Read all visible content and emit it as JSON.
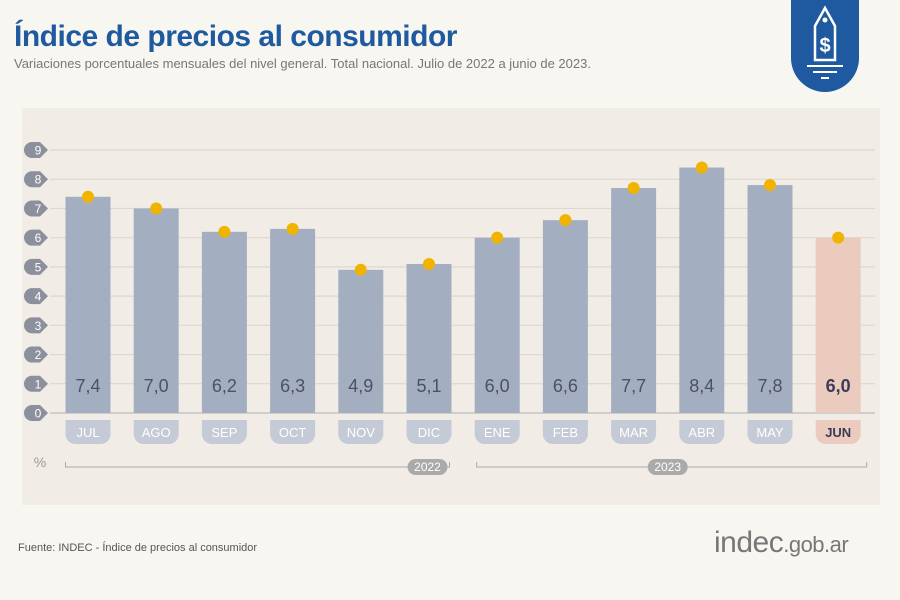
{
  "header": {
    "title": "Índice de precios al consumidor",
    "subtitle": "Variaciones porcentuales mensuales del nivel general. Total nacional. Julio de 2022 a junio de 2023."
  },
  "icon": "price-tag-dollar-icon",
  "chart_data": {
    "type": "bar",
    "categories": [
      "JUL",
      "AGO",
      "SEP",
      "OCT",
      "NOV",
      "DIC",
      "ENE",
      "FEB",
      "MAR",
      "ABR",
      "MAY",
      "JUN"
    ],
    "values": [
      7.4,
      7.0,
      6.2,
      6.3,
      4.9,
      5.1,
      6.0,
      6.6,
      7.7,
      8.4,
      7.8,
      6.0
    ],
    "value_labels": [
      "7,4",
      "7,0",
      "6,2",
      "6,3",
      "4,9",
      "5,1",
      "6,0",
      "6,6",
      "7,7",
      "8,4",
      "7,8",
      "6,0"
    ],
    "ylim": [
      0,
      9
    ],
    "yticks": [
      "0",
      "1",
      "2",
      "3",
      "4",
      "5",
      "6",
      "7",
      "8",
      "9"
    ],
    "ylabel": "%",
    "years": [
      {
        "label": "2022",
        "months": 6
      },
      {
        "label": "2023",
        "months": 6
      }
    ],
    "grid": true,
    "highlight_index": 11,
    "colors": {
      "bar": "#a3afc0",
      "highlight": "#ebcbbd",
      "marker": "#f0b400",
      "tick": "#8c8f9c",
      "title": "#1f5aa0"
    }
  },
  "footer": {
    "source": "Fuente: INDEC - Índice de precios al consumidor",
    "logo_main": "indec",
    "logo_suffix": ".gob.ar"
  }
}
